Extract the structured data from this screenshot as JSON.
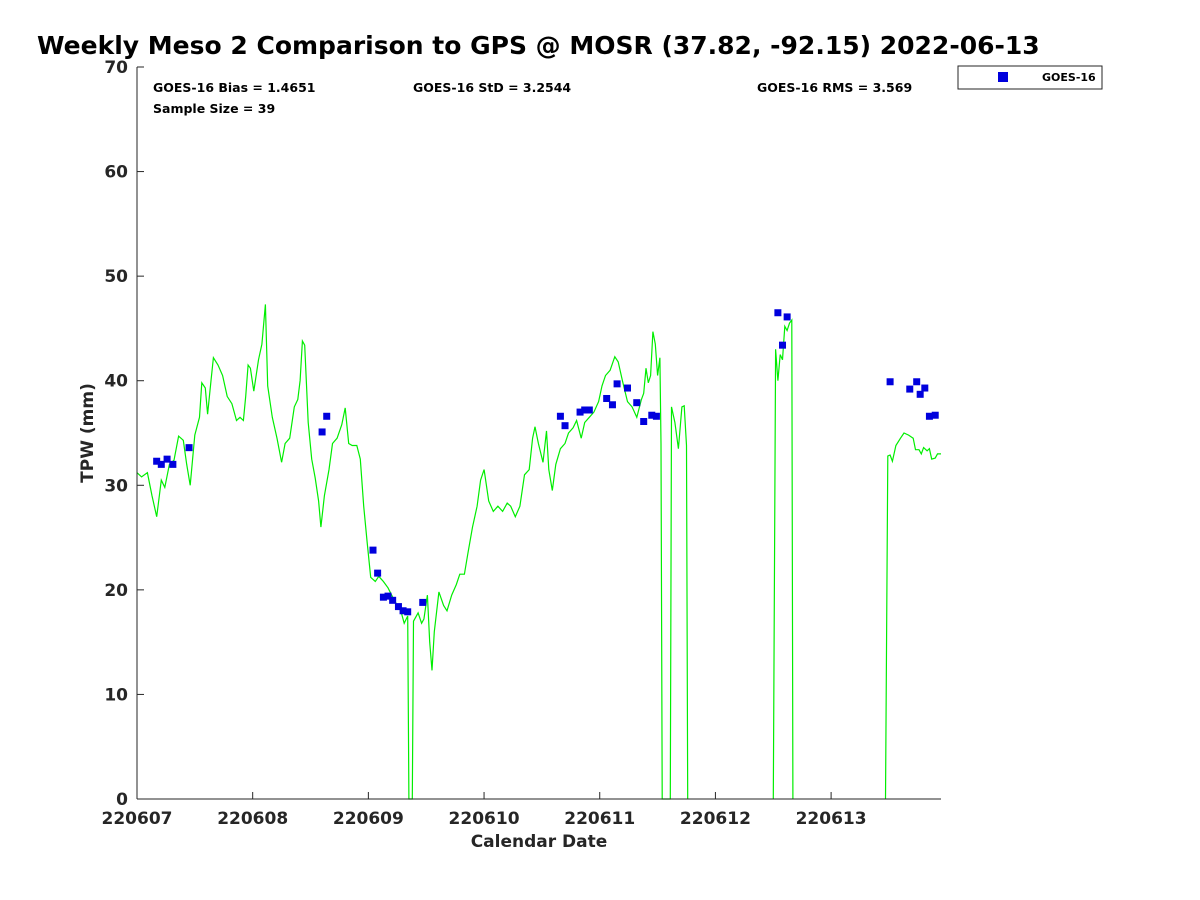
{
  "chart_data": {
    "type": "scatter",
    "title": "Weekly Meso 2 Comparison to GPS @ MOSR (37.82, -92.15) 2022-06-13",
    "xlabel": "Calendar Date",
    "ylabel": "TPW (mm)",
    "x_axis": {
      "range_days": [
        0,
        6.95
      ],
      "ticks": [
        {
          "day": 0,
          "label": "220607"
        },
        {
          "day": 1,
          "label": "220608"
        },
        {
          "day": 2,
          "label": "220609"
        },
        {
          "day": 3,
          "label": "220610"
        },
        {
          "day": 4,
          "label": "220611"
        },
        {
          "day": 5,
          "label": "220612"
        },
        {
          "day": 6,
          "label": "220613"
        }
      ]
    },
    "ylim": [
      0,
      70
    ],
    "yticks": [
      0,
      10,
      20,
      30,
      40,
      50,
      60,
      70
    ],
    "grid": false,
    "legend": {
      "placement": "outside-top-right",
      "entries": [
        {
          "label": "GOES-16",
          "color": "#0000dd",
          "marker": "square"
        }
      ]
    },
    "stats": {
      "bias": "GOES-16 Bias = 1.4651",
      "std": "GOES-16 StD = 3.2544",
      "rms": "GOES-16 RMS = 3.569",
      "sample_size": "Sample Size = 39"
    },
    "series": [
      {
        "name": "GOES-16",
        "kind": "scatter",
        "color": "#0000dd",
        "points": [
          [
            0.17,
            32.3
          ],
          [
            0.21,
            32.0
          ],
          [
            0.26,
            32.5
          ],
          [
            0.31,
            32.0
          ],
          [
            0.45,
            33.6
          ],
          [
            1.6,
            35.1
          ],
          [
            1.64,
            36.6
          ],
          [
            2.04,
            23.8
          ],
          [
            2.08,
            21.6
          ],
          [
            2.13,
            19.3
          ],
          [
            2.17,
            19.4
          ],
          [
            2.21,
            19.0
          ],
          [
            2.26,
            18.4
          ],
          [
            2.3,
            18.0
          ],
          [
            2.34,
            17.9
          ],
          [
            2.47,
            18.8
          ],
          [
            3.66,
            36.6
          ],
          [
            3.7,
            35.7
          ],
          [
            3.83,
            37.0
          ],
          [
            3.87,
            37.2
          ],
          [
            3.91,
            37.2
          ],
          [
            4.06,
            38.3
          ],
          [
            4.11,
            37.7
          ],
          [
            4.15,
            39.7
          ],
          [
            4.24,
            39.3
          ],
          [
            4.32,
            37.9
          ],
          [
            4.38,
            36.1
          ],
          [
            4.45,
            36.7
          ],
          [
            4.49,
            36.6
          ],
          [
            5.54,
            46.5
          ],
          [
            5.58,
            43.4
          ],
          [
            5.62,
            46.1
          ],
          [
            6.51,
            39.9
          ],
          [
            6.68,
            39.2
          ],
          [
            6.74,
            39.9
          ],
          [
            6.77,
            38.7
          ],
          [
            6.81,
            39.3
          ],
          [
            6.85,
            36.6
          ],
          [
            6.9,
            36.7
          ]
        ]
      },
      {
        "name": "GPS",
        "kind": "line",
        "color": "#00ee00",
        "points": [
          [
            0.0,
            31.2
          ],
          [
            0.04,
            30.8
          ],
          [
            0.09,
            31.2
          ],
          [
            0.13,
            29.0
          ],
          [
            0.17,
            27.0
          ],
          [
            0.21,
            30.5
          ],
          [
            0.24,
            29.8
          ],
          [
            0.28,
            32.0
          ],
          [
            0.32,
            32.4
          ],
          [
            0.36,
            34.7
          ],
          [
            0.4,
            34.3
          ],
          [
            0.43,
            32.0
          ],
          [
            0.46,
            30.0
          ],
          [
            0.5,
            34.8
          ],
          [
            0.54,
            36.5
          ],
          [
            0.56,
            39.8
          ],
          [
            0.59,
            39.3
          ],
          [
            0.61,
            36.8
          ],
          [
            0.64,
            40.0
          ],
          [
            0.66,
            42.2
          ],
          [
            0.7,
            41.5
          ],
          [
            0.74,
            40.5
          ],
          [
            0.78,
            38.5
          ],
          [
            0.82,
            37.8
          ],
          [
            0.86,
            36.2
          ],
          [
            0.89,
            36.5
          ],
          [
            0.92,
            36.2
          ],
          [
            0.94,
            38.5
          ],
          [
            0.96,
            41.5
          ],
          [
            0.98,
            41.2
          ],
          [
            1.01,
            39.0
          ],
          [
            1.05,
            42.0
          ],
          [
            1.08,
            43.5
          ],
          [
            1.11,
            47.3
          ],
          [
            1.13,
            39.5
          ],
          [
            1.17,
            36.5
          ],
          [
            1.21,
            34.5
          ],
          [
            1.25,
            32.2
          ],
          [
            1.28,
            34.0
          ],
          [
            1.32,
            34.5
          ],
          [
            1.36,
            37.5
          ],
          [
            1.39,
            38.2
          ],
          [
            1.41,
            40.0
          ],
          [
            1.43,
            43.8
          ],
          [
            1.45,
            43.4
          ],
          [
            1.48,
            36.0
          ],
          [
            1.51,
            32.5
          ],
          [
            1.54,
            30.7
          ],
          [
            1.57,
            28.5
          ],
          [
            1.59,
            26.0
          ],
          [
            1.62,
            29.0
          ],
          [
            1.66,
            31.5
          ],
          [
            1.69,
            34.0
          ],
          [
            1.73,
            34.5
          ],
          [
            1.77,
            35.8
          ],
          [
            1.8,
            37.4
          ],
          [
            1.83,
            34.0
          ],
          [
            1.86,
            33.8
          ],
          [
            1.9,
            33.8
          ],
          [
            1.93,
            32.5
          ],
          [
            1.96,
            28.0
          ],
          [
            1.99,
            24.5
          ],
          [
            2.02,
            21.2
          ],
          [
            2.06,
            20.8
          ],
          [
            2.09,
            21.3
          ],
          [
            2.13,
            20.8
          ],
          [
            2.17,
            20.2
          ],
          [
            2.21,
            19.3
          ],
          [
            2.25,
            18.5
          ],
          [
            2.28,
            18.0
          ],
          [
            2.31,
            16.8
          ],
          [
            2.34,
            17.5
          ],
          [
            2.35,
            0.0
          ],
          [
            2.38,
            0.0
          ],
          [
            2.39,
            17.0
          ],
          [
            2.43,
            17.8
          ],
          [
            2.46,
            16.8
          ],
          [
            2.48,
            17.2
          ],
          [
            2.51,
            19.5
          ],
          [
            2.53,
            15.0
          ],
          [
            2.55,
            12.3
          ],
          [
            2.57,
            16.0
          ],
          [
            2.61,
            19.8
          ],
          [
            2.65,
            18.5
          ],
          [
            2.68,
            18.0
          ],
          [
            2.72,
            19.5
          ],
          [
            2.76,
            20.5
          ],
          [
            2.79,
            21.5
          ],
          [
            2.83,
            21.5
          ],
          [
            2.86,
            23.5
          ],
          [
            2.9,
            26.0
          ],
          [
            2.94,
            28.0
          ],
          [
            2.97,
            30.5
          ],
          [
            3.0,
            31.5
          ],
          [
            3.04,
            28.5
          ],
          [
            3.08,
            27.5
          ],
          [
            3.12,
            28.0
          ],
          [
            3.16,
            27.5
          ],
          [
            3.2,
            28.3
          ],
          [
            3.23,
            28.0
          ],
          [
            3.27,
            27.0
          ],
          [
            3.31,
            28.0
          ],
          [
            3.35,
            31.0
          ],
          [
            3.39,
            31.5
          ],
          [
            3.42,
            34.5
          ],
          [
            3.44,
            35.6
          ],
          [
            3.47,
            34.0
          ],
          [
            3.51,
            32.2
          ],
          [
            3.54,
            35.2
          ],
          [
            3.56,
            31.5
          ],
          [
            3.59,
            29.5
          ],
          [
            3.62,
            32.0
          ],
          [
            3.66,
            33.5
          ],
          [
            3.7,
            34.0
          ],
          [
            3.73,
            35.0
          ],
          [
            3.77,
            35.5
          ],
          [
            3.8,
            36.2
          ],
          [
            3.84,
            34.5
          ],
          [
            3.87,
            36.0
          ],
          [
            3.91,
            36.5
          ],
          [
            3.95,
            37.0
          ],
          [
            3.99,
            38.0
          ],
          [
            4.02,
            39.5
          ],
          [
            4.05,
            40.5
          ],
          [
            4.09,
            41.0
          ],
          [
            4.13,
            42.3
          ],
          [
            4.16,
            41.8
          ],
          [
            4.2,
            39.8
          ],
          [
            4.24,
            38.0
          ],
          [
            4.28,
            37.5
          ],
          [
            4.32,
            36.5
          ],
          [
            4.36,
            38.2
          ],
          [
            4.38,
            38.8
          ],
          [
            4.4,
            41.2
          ],
          [
            4.42,
            39.8
          ],
          [
            4.44,
            40.5
          ],
          [
            4.46,
            44.7
          ],
          [
            4.48,
            43.5
          ],
          [
            4.5,
            40.5
          ],
          [
            4.52,
            42.2
          ],
          [
            4.53,
            34.0
          ],
          [
            4.54,
            0.0
          ],
          [
            4.61,
            0.0
          ],
          [
            4.62,
            37.5
          ],
          [
            4.65,
            36.0
          ],
          [
            4.68,
            33.5
          ],
          [
            4.71,
            37.5
          ],
          [
            4.73,
            37.6
          ],
          [
            4.75,
            33.8
          ],
          [
            4.76,
            0.0
          ]
        ]
      },
      {
        "name": "GPS",
        "kind": "line",
        "color": "#00ee00",
        "points": [
          [
            5.5,
            0.0
          ],
          [
            5.52,
            43.0
          ],
          [
            5.54,
            40.0
          ],
          [
            5.56,
            42.5
          ],
          [
            5.58,
            42.0
          ],
          [
            5.6,
            45.2
          ],
          [
            5.62,
            44.8
          ],
          [
            5.64,
            45.5
          ],
          [
            5.66,
            45.8
          ],
          [
            5.67,
            0.0
          ]
        ]
      },
      {
        "name": "GPS",
        "kind": "line",
        "color": "#00ee00",
        "points": [
          [
            6.47,
            0.0
          ],
          [
            6.49,
            32.8
          ],
          [
            6.51,
            32.9
          ],
          [
            6.53,
            32.3
          ],
          [
            6.56,
            33.8
          ],
          [
            6.6,
            34.5
          ],
          [
            6.63,
            35.0
          ],
          [
            6.67,
            34.8
          ],
          [
            6.71,
            34.5
          ],
          [
            6.73,
            33.4
          ],
          [
            6.76,
            33.4
          ],
          [
            6.78,
            33.0
          ],
          [
            6.8,
            33.6
          ],
          [
            6.83,
            33.3
          ],
          [
            6.85,
            33.5
          ],
          [
            6.87,
            32.5
          ],
          [
            6.9,
            32.6
          ],
          [
            6.92,
            33.0
          ],
          [
            6.95,
            33.0
          ]
        ]
      }
    ]
  }
}
